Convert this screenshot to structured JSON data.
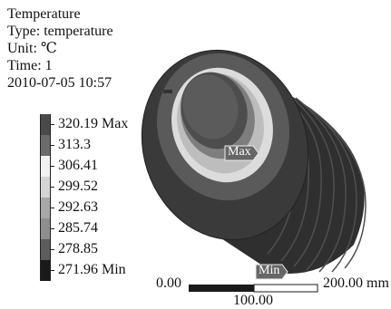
{
  "info": {
    "title": "Temperature",
    "type": "Type: temperature",
    "unit": "Unit: ℃",
    "time": "Time: 1",
    "timestamp": "2010-07-05  10:57"
  },
  "legend": [
    {
      "label": "320.19 Max",
      "color": "#4a4a4a"
    },
    {
      "label": "313.3",
      "color": "#6b6b6b"
    },
    {
      "label": "306.41",
      "color": "#f2f2f2"
    },
    {
      "label": "299.52",
      "color": "#d4d4d4"
    },
    {
      "label": "292.63",
      "color": "#a8a8a8"
    },
    {
      "label": "285.74",
      "color": "#8e8e8e"
    },
    {
      "label": "278.85",
      "color": "#5c5c5c"
    },
    {
      "label": "271.96 Min",
      "color": "#1a1a1a"
    }
  ],
  "markers": {
    "max": "Max",
    "min": "Min"
  },
  "scale": {
    "start": "0.00",
    "mid": "100.00",
    "end": "200.00 mm"
  }
}
